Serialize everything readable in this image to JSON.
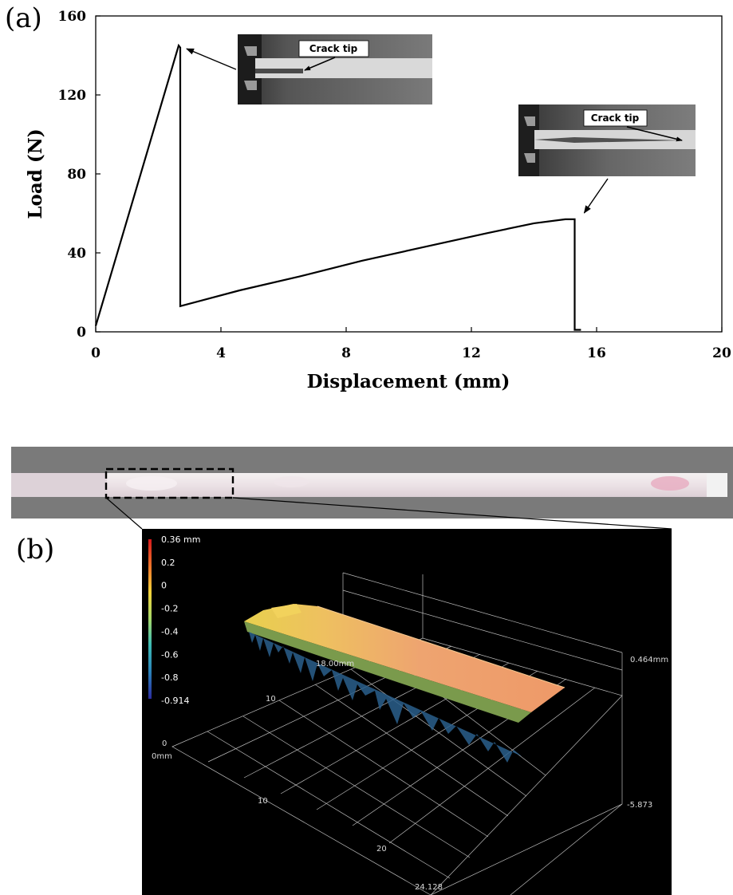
{
  "figure": {
    "panel_a_label": "(a)",
    "panel_b_label": "(b)"
  },
  "chart_data": {
    "type": "line",
    "xlabel": "Displacement (mm)",
    "ylabel": "Load (N)",
    "xlim": [
      0,
      20
    ],
    "ylim": [
      0,
      160
    ],
    "xticks": [
      0,
      4,
      8,
      12,
      16,
      20
    ],
    "yticks": [
      0,
      40,
      80,
      120,
      160
    ],
    "grid": false,
    "x": [
      0,
      2.65,
      2.7,
      2.7,
      4.6,
      6.5,
      8.5,
      10.5,
      12.5,
      14.0,
      15.0,
      15.3,
      15.3,
      15.5
    ],
    "y": [
      3,
      145,
      144,
      13,
      21,
      28,
      36,
      43,
      50,
      55,
      57,
      57,
      1,
      1
    ],
    "annotations": [
      {
        "text": "Crack tip",
        "arrow_to": [
          2.7,
          145
        ]
      },
      {
        "text": "Crack tip",
        "arrow_to": [
          15.4,
          57
        ]
      }
    ]
  },
  "surface_scan": {
    "colorbar_ticks": [
      "0.36 mm",
      "0.2",
      "0",
      "-0.2",
      "-0.4",
      "-0.6",
      "-0.8",
      "-0.914"
    ],
    "axis_labels": [
      "18.00mm",
      "0.464mm",
      "10",
      "0",
      "0mm",
      "10",
      "-5.873",
      "20",
      "24.128"
    ]
  }
}
